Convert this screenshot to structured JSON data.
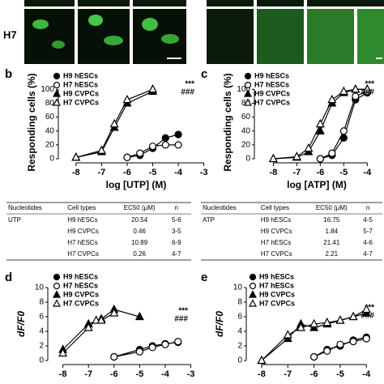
{
  "image_label": "H7",
  "chart_data": [
    {
      "type": "line",
      "panel": "b",
      "x_label": "log [UTP] (M)",
      "y_label": "Responding cells (%)",
      "xlim": [
        -8.5,
        -2.8
      ],
      "xticks": [
        -8,
        -7,
        -6,
        -5,
        -4,
        -3
      ],
      "ylim": [
        0,
        105
      ],
      "yticks": [
        0,
        20,
        40,
        60,
        80,
        100
      ],
      "annotations": [
        "***",
        "###"
      ],
      "series": [
        {
          "name": "H9 hESCs",
          "color": "#000000",
          "marker": "circle",
          "filled": true,
          "x": [
            -6,
            -5.5,
            -5,
            -4.5,
            -4
          ],
          "values": [
            2,
            5,
            15,
            30,
            35
          ]
        },
        {
          "name": "H7 hESCs",
          "color": "#000000",
          "marker": "circle",
          "filled": false,
          "x": [
            -6,
            -5.5,
            -5,
            -4.5,
            -4
          ],
          "values": [
            2,
            8,
            18,
            20,
            20
          ]
        },
        {
          "name": "H9 CVPCs",
          "color": "#000000",
          "marker": "triangle",
          "filled": true,
          "x": [
            -8,
            -7,
            -6.5,
            -6,
            -5
          ],
          "values": [
            2,
            10,
            45,
            80,
            97
          ]
        },
        {
          "name": "H7 CVPCs",
          "color": "#000000",
          "marker": "triangle",
          "filled": false,
          "x": [
            -8,
            -7,
            -6.5,
            -6,
            -5
          ],
          "values": [
            2,
            12,
            50,
            85,
            100
          ]
        }
      ]
    },
    {
      "type": "line",
      "panel": "c",
      "x_label": "log [ATP] (M)",
      "y_label": "Responding cells (%)",
      "xlim": [
        -8.6,
        -3.7
      ],
      "xticks": [
        -8,
        -7,
        -6,
        -5,
        -4
      ],
      "ylim": [
        0,
        105
      ],
      "yticks": [
        0,
        20,
        40,
        60,
        80,
        100
      ],
      "annotations": [
        "***",
        "###"
      ],
      "series": [
        {
          "name": "H9 hESCs",
          "color": "#000000",
          "marker": "circle",
          "filled": true,
          "x": [
            -6,
            -5.5,
            -5,
            -4.5,
            -4
          ],
          "values": [
            0,
            5,
            30,
            85,
            95
          ]
        },
        {
          "name": "H7 hESCs",
          "color": "#000000",
          "marker": "circle",
          "filled": false,
          "x": [
            -6,
            -5.5,
            -5,
            -4.5,
            -4
          ],
          "values": [
            0,
            8,
            40,
            90,
            97
          ]
        },
        {
          "name": "H9 CVPCs",
          "color": "#000000",
          "marker": "triangle",
          "filled": true,
          "x": [
            -8,
            -7,
            -6.5,
            -6,
            -5.5,
            -5,
            -4.5,
            -4
          ],
          "values": [
            0,
            2,
            10,
            40,
            80,
            95,
            100,
            100
          ]
        },
        {
          "name": "H7 CVPCs",
          "color": "#000000",
          "marker": "triangle",
          "filled": false,
          "x": [
            -8,
            -7,
            -6.5,
            -6,
            -5.5,
            -5,
            -4.5,
            -4
          ],
          "values": [
            0,
            3,
            15,
            50,
            85,
            97,
            100,
            100
          ]
        }
      ]
    },
    {
      "type": "line",
      "panel": "d",
      "x_label": null,
      "y_label": "dF/F0",
      "xlim": [
        -8.4,
        -2.7
      ],
      "xticks": [
        -8,
        -7,
        -6,
        -5,
        -4,
        -3
      ],
      "ylim": [
        0,
        10
      ],
      "yticks": [
        0,
        2,
        4,
        6,
        8,
        10
      ],
      "annotations": [
        "***",
        "###"
      ],
      "series": [
        {
          "name": "H9 hESCs",
          "color": "#000000",
          "marker": "circle",
          "filled": true,
          "x": [
            -6,
            -5,
            -4.5,
            -4,
            -3.5
          ],
          "values": [
            0.5,
            1.5,
            2,
            2.3,
            2.5
          ]
        },
        {
          "name": "H7 hESCs",
          "color": "#000000",
          "marker": "circle",
          "filled": false,
          "x": [
            -6,
            -5,
            -4.5,
            -4,
            -3.5
          ],
          "values": [
            0.5,
            1.2,
            1.8,
            2.2,
            2.6
          ]
        },
        {
          "name": "H9 CVPCs",
          "color": "#000000",
          "marker": "triangle",
          "filled": true,
          "x": [
            -8,
            -7,
            -6.5,
            -6,
            -5
          ],
          "values": [
            1.5,
            5,
            5.7,
            7,
            6
          ]
        },
        {
          "name": "H7 CVPCs",
          "color": "#000000",
          "marker": "triangle",
          "filled": false,
          "x": [
            -8,
            -7,
            -6.7,
            -6.5,
            -6
          ],
          "values": [
            1,
            4.5,
            5.5,
            5.5,
            6.5
          ]
        }
      ]
    },
    {
      "type": "line",
      "panel": "e",
      "x_label": null,
      "y_label": "dF/F0",
      "xlim": [
        -8.4,
        -3.7
      ],
      "xticks": [
        -8,
        -7,
        -6,
        -5,
        -4
      ],
      "ylim": [
        0,
        10
      ],
      "yticks": [
        0,
        2,
        4,
        6,
        8,
        10
      ],
      "annotations": [
        "***",
        "###"
      ],
      "series": [
        {
          "name": "H9 hESCs",
          "color": "#000000",
          "marker": "circle",
          "filled": true,
          "x": [
            -6,
            -5.5,
            -5,
            -4.5,
            -4
          ],
          "values": [
            0.5,
            1.5,
            2,
            2.8,
            3.2
          ]
        },
        {
          "name": "H7 hESCs",
          "color": "#000000",
          "marker": "circle",
          "filled": false,
          "x": [
            -6,
            -5.5,
            -5,
            -4.5,
            -4
          ],
          "values": [
            0.5,
            1.3,
            2.2,
            2.6,
            3
          ]
        },
        {
          "name": "H9 CVPCs",
          "color": "#000000",
          "marker": "triangle",
          "filled": true,
          "x": [
            -8,
            -7,
            -6.5,
            -6,
            -5.5,
            -5,
            -4.5,
            -4
          ],
          "values": [
            0,
            3,
            5,
            4.5,
            5,
            5.5,
            6,
            6.5
          ]
        },
        {
          "name": "H7 CVPCs",
          "color": "#000000",
          "marker": "triangle",
          "filled": false,
          "x": [
            -8,
            -7,
            -6.5,
            -6,
            -5.5,
            -5,
            -4.5,
            -4
          ],
          "values": [
            0,
            3.5,
            4.5,
            5,
            5.2,
            5.5,
            6,
            7
          ]
        }
      ]
    }
  ],
  "tables": [
    {
      "columns": [
        "Nucleotides",
        "Cell types",
        "EC50 (μM)",
        "n"
      ],
      "nucleotide": "UTP",
      "rows": [
        [
          "H9 hESCs",
          20.54,
          "5-6"
        ],
        [
          "H9 CVPCs",
          0.46,
          "3-5"
        ],
        [
          "H7 hESCs",
          10.89,
          "6-9"
        ],
        [
          "H7 CVPCs",
          0.26,
          "4-7"
        ]
      ]
    },
    {
      "columns": [
        "Nucleotides",
        "Cell types",
        "EC50 (μM)",
        "n"
      ],
      "nucleotide": "ATP",
      "rows": [
        [
          "H9 hESCs",
          16.75,
          "4-5"
        ],
        [
          "H9 CVPCs",
          1.84,
          "5-7"
        ],
        [
          "H7 hESCs",
          21.41,
          "4-6"
        ],
        [
          "H7 CVPCs",
          2.21,
          "4-7"
        ]
      ]
    }
  ]
}
